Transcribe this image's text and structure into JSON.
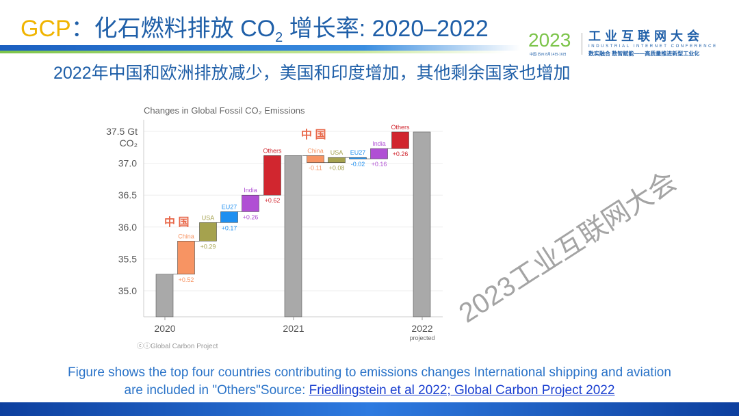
{
  "header": {
    "title_prefix": "GCP",
    "title_main": "：化石燃料排放 CO",
    "title_sub": "2",
    "title_suffix": " 增长率: 2020–2022"
  },
  "logo": {
    "year": "2023",
    "date": "中国·苏州 8月14日-16日",
    "name_cn": "工业互联网大会",
    "name_en": "INDUSTRIAL INTERNET CONFERENCE",
    "slogan": "数实融合 数智赋能——高质量推进新型工业化"
  },
  "subtitle": "2022年中国和欧洲排放减少，美国和印度增加，其他剩余国家也增加",
  "watermark": "2023工业互联网大会",
  "caption": {
    "line1": "Figure shows the top four countries contributing to emissions changes International shipping and aviation",
    "line2_prefix": "are included in \"Others\"Source: ",
    "line2_link": "Friedlingstein et al 2022; Global Carbon Project 2022"
  },
  "chart_data": {
    "type": "bar",
    "subtype": "waterfall",
    "title": "Changes in Global Fossil CO₂ Emissions",
    "ylabel": "Gt CO₂",
    "ylim": [
      34.59,
      37.7
    ],
    "yticks": [
      "35.0",
      "35.5",
      "36.0",
      "36.5",
      "37.0",
      "37.5"
    ],
    "ytick_top_label": [
      "37.5 Gt",
      "CO₂"
    ],
    "xticks": [
      "2020",
      "2021",
      "2022"
    ],
    "xtick_note": "projected",
    "annotation": "中 国",
    "credit": "Global Carbon Project",
    "totals": [
      {
        "label": "2020",
        "value": 35.26
      },
      {
        "label": "2021",
        "value": 37.12
      },
      {
        "label": "2022",
        "value": 37.49
      }
    ],
    "changes": [
      {
        "period": "2020-2021",
        "name": "China",
        "delta": 0.52,
        "label": "+0.52",
        "color": "#f79463"
      },
      {
        "period": "2020-2021",
        "name": "USA",
        "delta": 0.29,
        "label": "+0.29",
        "color": "#a5a24e"
      },
      {
        "period": "2020-2021",
        "name": "EU27",
        "delta": 0.17,
        "label": "+0.17",
        "color": "#1e8ff0"
      },
      {
        "period": "2020-2021",
        "name": "India",
        "delta": 0.26,
        "label": "+0.26",
        "color": "#b04fd4"
      },
      {
        "period": "2020-2021",
        "name": "Others",
        "delta": 0.62,
        "label": "+0.62",
        "color": "#d1262f"
      },
      {
        "period": "2021-2022",
        "name": "China",
        "delta": -0.11,
        "label": "-0.11",
        "color": "#f79463"
      },
      {
        "period": "2021-2022",
        "name": "USA",
        "delta": 0.08,
        "label": "+0.08",
        "color": "#a5a24e"
      },
      {
        "period": "2021-2022",
        "name": "EU27",
        "delta": -0.02,
        "label": "-0.02",
        "color": "#1e8ff0"
      },
      {
        "period": "2021-2022",
        "name": "India",
        "delta": 0.16,
        "label": "+0.16",
        "color": "#b04fd4"
      },
      {
        "period": "2021-2022",
        "name": "Others",
        "delta": 0.26,
        "label": "+0.26",
        "color": "#d1262f"
      }
    ],
    "total_color": "#a9a9a9",
    "grid": true
  }
}
